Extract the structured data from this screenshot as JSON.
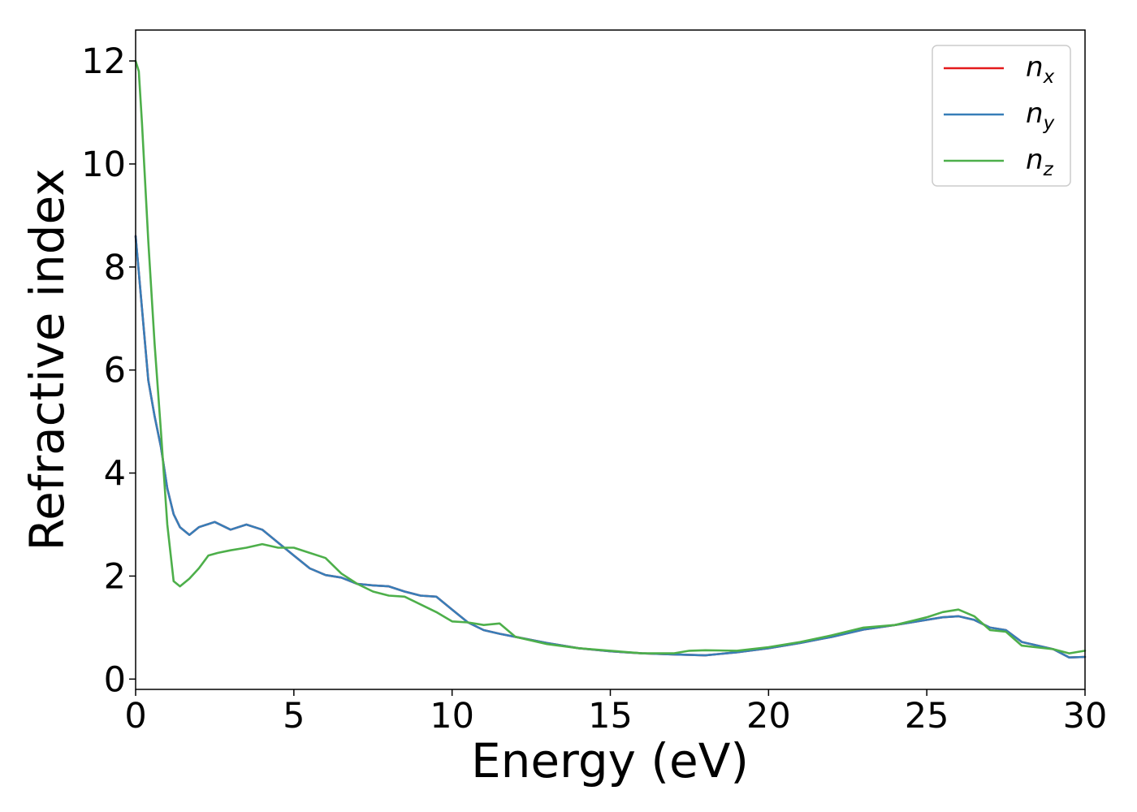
{
  "chart_data": {
    "type": "line",
    "xlabel": "Energy (eV)",
    "ylabel": "Refractive index",
    "xlim": [
      0,
      30
    ],
    "ylim": [
      -0.2,
      12.6
    ],
    "xticks": [
      0,
      5,
      10,
      15,
      20,
      25,
      30
    ],
    "yticks": [
      0,
      2,
      4,
      6,
      8,
      10,
      12
    ],
    "grid": false,
    "legend_position": "top-right",
    "series": [
      {
        "name": "n_x",
        "base": "n",
        "sub": "x",
        "color": "#e41a1c",
        "x": [
          0,
          0.2,
          0.4,
          0.6,
          0.8,
          1.0,
          1.2,
          1.4,
          1.7,
          2.0,
          2.5,
          3.0,
          3.5,
          4.0,
          4.5,
          5.0,
          5.5,
          6.0,
          6.5,
          7.0,
          7.5,
          8.0,
          8.5,
          9.0,
          9.5,
          10.0,
          10.5,
          11.0,
          11.5,
          12.0,
          13.0,
          14.0,
          15.0,
          16.0,
          17.0,
          18.0,
          19.0,
          20.0,
          21.0,
          22.0,
          23.0,
          24.0,
          25.0,
          25.5,
          26.0,
          26.5,
          27.0,
          27.5,
          28.0,
          29.0,
          29.5,
          30.0
        ],
        "values": [
          8.6,
          7.2,
          5.8,
          5.1,
          4.5,
          3.7,
          3.2,
          2.95,
          2.8,
          2.95,
          3.05,
          2.9,
          3.0,
          2.9,
          2.65,
          2.4,
          2.15,
          2.02,
          1.97,
          1.85,
          1.82,
          1.8,
          1.7,
          1.62,
          1.6,
          1.35,
          1.1,
          0.95,
          0.88,
          0.82,
          0.7,
          0.6,
          0.54,
          0.5,
          0.48,
          0.46,
          0.52,
          0.6,
          0.7,
          0.82,
          0.96,
          1.05,
          1.15,
          1.2,
          1.22,
          1.15,
          1.0,
          0.95,
          0.72,
          0.58,
          0.42,
          0.43
        ]
      },
      {
        "name": "n_y",
        "base": "n",
        "sub": "y",
        "color": "#377eb8",
        "x": [
          0,
          0.2,
          0.4,
          0.6,
          0.8,
          1.0,
          1.2,
          1.4,
          1.7,
          2.0,
          2.5,
          3.0,
          3.5,
          4.0,
          4.5,
          5.0,
          5.5,
          6.0,
          6.5,
          7.0,
          7.5,
          8.0,
          8.5,
          9.0,
          9.5,
          10.0,
          10.5,
          11.0,
          11.5,
          12.0,
          13.0,
          14.0,
          15.0,
          16.0,
          17.0,
          18.0,
          19.0,
          20.0,
          21.0,
          22.0,
          23.0,
          24.0,
          25.0,
          25.5,
          26.0,
          26.5,
          27.0,
          27.5,
          28.0,
          29.0,
          29.5,
          30.0
        ],
        "values": [
          8.6,
          7.2,
          5.8,
          5.1,
          4.5,
          3.7,
          3.2,
          2.95,
          2.8,
          2.95,
          3.05,
          2.9,
          3.0,
          2.9,
          2.65,
          2.4,
          2.15,
          2.02,
          1.97,
          1.85,
          1.82,
          1.8,
          1.7,
          1.62,
          1.6,
          1.35,
          1.1,
          0.95,
          0.88,
          0.82,
          0.7,
          0.6,
          0.54,
          0.5,
          0.48,
          0.46,
          0.52,
          0.6,
          0.7,
          0.82,
          0.96,
          1.05,
          1.15,
          1.2,
          1.22,
          1.15,
          1.0,
          0.95,
          0.72,
          0.58,
          0.42,
          0.43
        ]
      },
      {
        "name": "n_z",
        "base": "n",
        "sub": "z",
        "color": "#4daf4a",
        "x": [
          0,
          0.1,
          0.2,
          0.4,
          0.6,
          0.8,
          1.0,
          1.2,
          1.4,
          1.7,
          2.0,
          2.3,
          2.6,
          3.0,
          3.5,
          4.0,
          4.5,
          5.0,
          5.5,
          6.0,
          6.5,
          7.0,
          7.5,
          8.0,
          8.5,
          9.0,
          9.5,
          10.0,
          10.5,
          11.0,
          11.5,
          12.0,
          13.0,
          14.0,
          15.0,
          16.0,
          17.0,
          17.5,
          18.0,
          19.0,
          20.0,
          21.0,
          22.0,
          23.0,
          24.0,
          25.0,
          25.5,
          26.0,
          26.5,
          27.0,
          27.5,
          28.0,
          29.0,
          29.5,
          30.0
        ],
        "values": [
          12.0,
          11.8,
          10.8,
          8.5,
          6.5,
          4.8,
          3.0,
          1.9,
          1.8,
          1.95,
          2.15,
          2.4,
          2.45,
          2.5,
          2.55,
          2.62,
          2.55,
          2.55,
          2.45,
          2.35,
          2.05,
          1.85,
          1.7,
          1.62,
          1.6,
          1.45,
          1.3,
          1.12,
          1.1,
          1.05,
          1.08,
          0.82,
          0.68,
          0.6,
          0.55,
          0.5,
          0.5,
          0.55,
          0.56,
          0.55,
          0.62,
          0.72,
          0.85,
          1.0,
          1.05,
          1.2,
          1.3,
          1.35,
          1.22,
          0.95,
          0.92,
          0.65,
          0.58,
          0.5,
          0.55
        ]
      }
    ]
  }
}
